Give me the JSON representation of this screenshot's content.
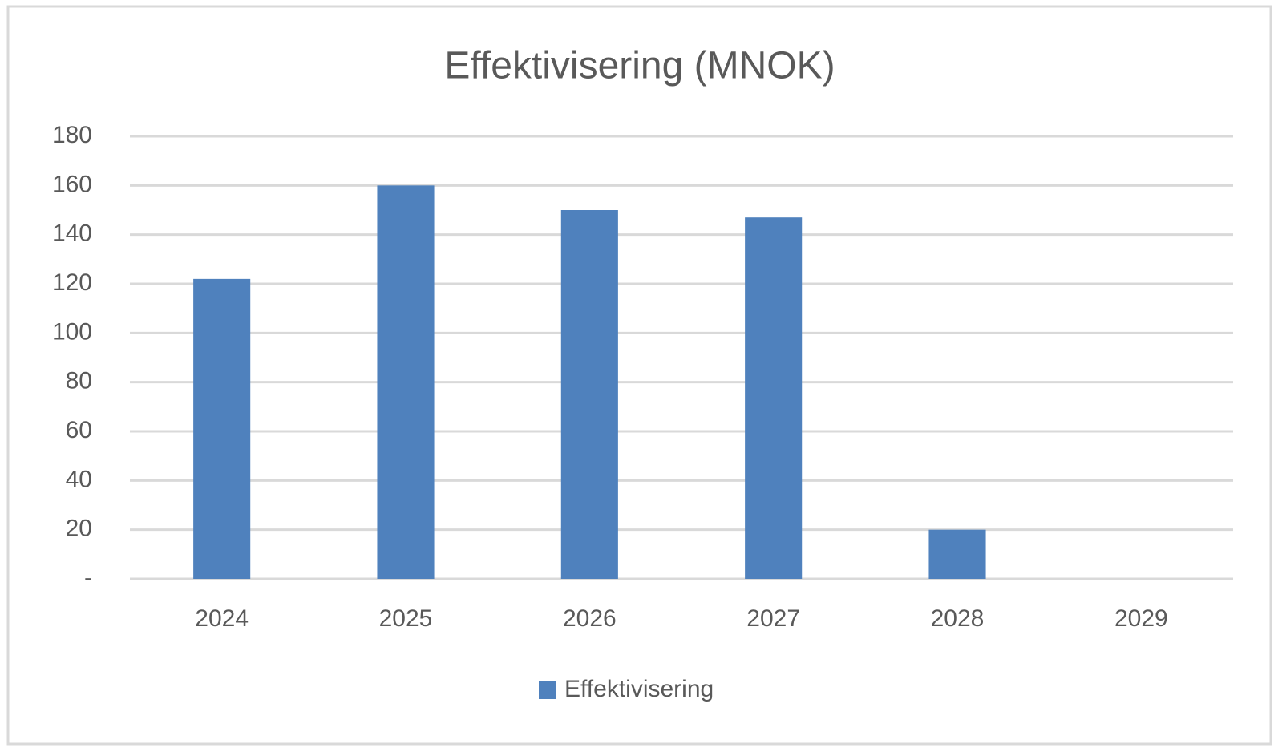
{
  "chart_data": {
    "type": "bar",
    "title": "Effektivisering (MNOK)",
    "categories": [
      "2024",
      "2025",
      "2026",
      "2027",
      "2028",
      "2029"
    ],
    "series": [
      {
        "name": "Effektivisering",
        "color": "#4f81bd",
        "values": [
          122,
          160,
          150,
          147,
          20,
          0
        ]
      }
    ],
    "ylim": [
      0,
      180
    ],
    "yticks": [
      {
        "value": 0,
        "label": "-"
      },
      20,
      40,
      60,
      80,
      100,
      120,
      140,
      160,
      180
    ],
    "grid": true,
    "legend": "bottom"
  }
}
